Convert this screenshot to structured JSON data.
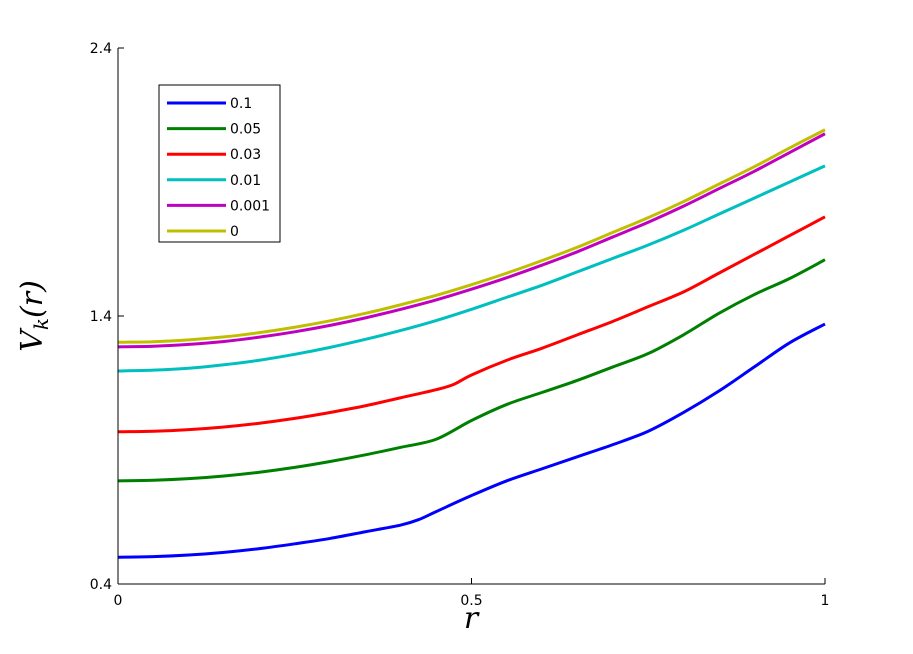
{
  "chart_data": {
    "type": "line",
    "xlabel": "r",
    "ylabel": "V",
    "ylabel_sub": "k",
    "ylabel_suffix": "(r)",
    "xlim": [
      0,
      1
    ],
    "ylim": [
      0.4,
      2.4
    ],
    "x_ticks": [
      {
        "value": 0,
        "label": "0"
      },
      {
        "value": 0.5,
        "label": "0.5"
      },
      {
        "value": 1,
        "label": "1"
      }
    ],
    "y_ticks": [
      {
        "value": 0.4,
        "label": "0.4"
      },
      {
        "value": 1.4,
        "label": "1.4"
      },
      {
        "value": 2.4,
        "label": "2.4"
      }
    ],
    "grid": false,
    "legend_position": "top-left",
    "series": [
      {
        "name": "0.1",
        "color": "#0000ff",
        "x": [
          0,
          0.05,
          0.1,
          0.15,
          0.2,
          0.25,
          0.3,
          0.35,
          0.4,
          0.425,
          0.45,
          0.5,
          0.55,
          0.6,
          0.65,
          0.7,
          0.75,
          0.8,
          0.85,
          0.9,
          0.95,
          1.0
        ],
        "y": [
          0.5,
          0.502,
          0.508,
          0.518,
          0.532,
          0.55,
          0.57,
          0.595,
          0.62,
          0.64,
          0.67,
          0.73,
          0.785,
          0.83,
          0.875,
          0.92,
          0.97,
          1.04,
          1.12,
          1.21,
          1.3,
          1.37
        ]
      },
      {
        "name": "0.05",
        "color": "#008000",
        "x": [
          0,
          0.05,
          0.1,
          0.15,
          0.2,
          0.25,
          0.3,
          0.35,
          0.4,
          0.45,
          0.5,
          0.55,
          0.6,
          0.65,
          0.7,
          0.75,
          0.8,
          0.85,
          0.9,
          0.95,
          1.0
        ],
        "y": [
          0.785,
          0.787,
          0.793,
          0.803,
          0.817,
          0.835,
          0.857,
          0.882,
          0.91,
          0.94,
          1.01,
          1.07,
          1.115,
          1.16,
          1.21,
          1.26,
          1.33,
          1.41,
          1.48,
          1.54,
          1.61
        ]
      },
      {
        "name": "0.03",
        "color": "#ff0000",
        "x": [
          0,
          0.05,
          0.1,
          0.15,
          0.2,
          0.25,
          0.3,
          0.35,
          0.4,
          0.45,
          0.475,
          0.5,
          0.55,
          0.6,
          0.65,
          0.7,
          0.75,
          0.8,
          0.85,
          0.9,
          0.95,
          1.0
        ],
        "y": [
          0.968,
          0.97,
          0.976,
          0.986,
          1.0,
          1.018,
          1.04,
          1.065,
          1.095,
          1.125,
          1.145,
          1.18,
          1.235,
          1.28,
          1.33,
          1.38,
          1.435,
          1.49,
          1.56,
          1.63,
          1.7,
          1.77
        ]
      },
      {
        "name": "0.01",
        "color": "#00bfbf",
        "x": [
          0,
          0.05,
          0.1,
          0.15,
          0.2,
          0.25,
          0.3,
          0.35,
          0.4,
          0.45,
          0.5,
          0.55,
          0.6,
          0.65,
          0.7,
          0.75,
          0.8,
          0.85,
          0.9,
          0.95,
          1.0
        ],
        "y": [
          1.195,
          1.198,
          1.205,
          1.218,
          1.235,
          1.257,
          1.283,
          1.313,
          1.346,
          1.383,
          1.425,
          1.47,
          1.515,
          1.565,
          1.615,
          1.665,
          1.72,
          1.78,
          1.84,
          1.9,
          1.96
        ]
      },
      {
        "name": "0.001",
        "color": "#bf00bf",
        "x": [
          0,
          0.05,
          0.1,
          0.15,
          0.2,
          0.25,
          0.3,
          0.35,
          0.4,
          0.45,
          0.5,
          0.55,
          0.6,
          0.65,
          0.7,
          0.75,
          0.8,
          0.85,
          0.9,
          0.95,
          1.0
        ],
        "y": [
          1.285,
          1.287,
          1.294,
          1.305,
          1.321,
          1.341,
          1.365,
          1.393,
          1.425,
          1.46,
          1.5,
          1.543,
          1.59,
          1.64,
          1.695,
          1.75,
          1.81,
          1.875,
          1.94,
          2.01,
          2.08
        ]
      },
      {
        "name": "0",
        "color": "#bfbf00",
        "x": [
          0,
          0.05,
          0.1,
          0.15,
          0.2,
          0.25,
          0.3,
          0.35,
          0.4,
          0.45,
          0.5,
          0.55,
          0.6,
          0.65,
          0.7,
          0.75,
          0.8,
          0.85,
          0.9,
          0.95,
          1.0
        ],
        "y": [
          1.302,
          1.304,
          1.311,
          1.322,
          1.338,
          1.358,
          1.382,
          1.41,
          1.442,
          1.477,
          1.517,
          1.56,
          1.607,
          1.657,
          1.712,
          1.767,
          1.827,
          1.892,
          1.957,
          2.027,
          2.095
        ]
      }
    ]
  }
}
